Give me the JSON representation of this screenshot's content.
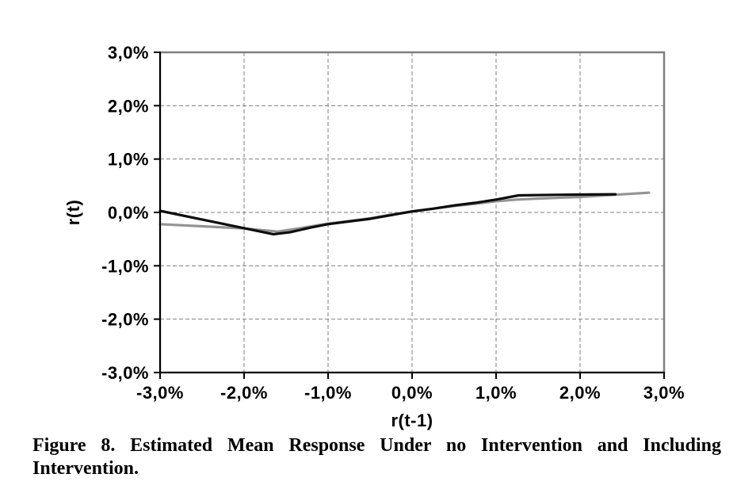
{
  "figure": {
    "caption_full": "Figure 8. Estimated Mean Response Under no Intervention and Including Intervention.",
    "caption_line1": "Figure 8. Estimated Mean Response Under no Intervention and Including",
    "caption_line2": "Intervention."
  },
  "chart_data": {
    "type": "line",
    "title": "",
    "xlabel": "r(t-1)",
    "ylabel": "r(t)",
    "units": "%",
    "xlim": [
      -3,
      3
    ],
    "ylim": [
      -3,
      3
    ],
    "grid": "dashed",
    "legend_position": "none",
    "x_ticks": {
      "values": [
        -3,
        -2,
        -1,
        0,
        1,
        2,
        3
      ],
      "labels": [
        "-3,0%",
        "-2,0%",
        "-1,0%",
        "0,0%",
        "1,0%",
        "2,0%",
        "3,0%"
      ]
    },
    "y_ticks": {
      "values": [
        3,
        2,
        1,
        0,
        -1,
        -2,
        -3
      ],
      "labels": [
        "3,0%",
        "2,0%",
        "1,0%",
        "0,0%",
        "-1,0%",
        "-2,0%",
        "-3,0%"
      ]
    },
    "colors": {
      "no_intervention_line": "#0d0d0d",
      "including_intervention_line": "#949494",
      "plot_border": "#7f7f7f",
      "gridline": "#7f7f7f",
      "axis": "#000000"
    },
    "series": [
      {
        "name": "no_intervention",
        "color": "#0d0d0d",
        "x": [
          -3.0,
          -1.65,
          -1.45,
          -1.2,
          -1.0,
          -0.75,
          -0.5,
          -0.25,
          0.0,
          0.25,
          0.5,
          0.75,
          1.0,
          1.27,
          1.7,
          2.1,
          2.42
        ],
        "y": [
          0.03,
          -0.41,
          -0.37,
          -0.28,
          -0.22,
          -0.17,
          -0.12,
          -0.05,
          0.02,
          0.07,
          0.13,
          0.18,
          0.24,
          0.32,
          0.33,
          0.335,
          0.34
        ]
      },
      {
        "name": "including_intervention",
        "color": "#949494",
        "x": [
          -3.0,
          -2.5,
          -2.0,
          -1.6,
          -1.35,
          -1.0,
          -0.75,
          -0.5,
          -0.25,
          0.0,
          0.25,
          0.5,
          0.75,
          1.0,
          1.25,
          1.5,
          2.0,
          2.4,
          2.82
        ],
        "y": [
          -0.22,
          -0.26,
          -0.3,
          -0.36,
          -0.3,
          -0.21,
          -0.16,
          -0.11,
          -0.04,
          0.015,
          0.07,
          0.12,
          0.16,
          0.21,
          0.24,
          0.26,
          0.29,
          0.33,
          0.37
        ]
      }
    ]
  }
}
